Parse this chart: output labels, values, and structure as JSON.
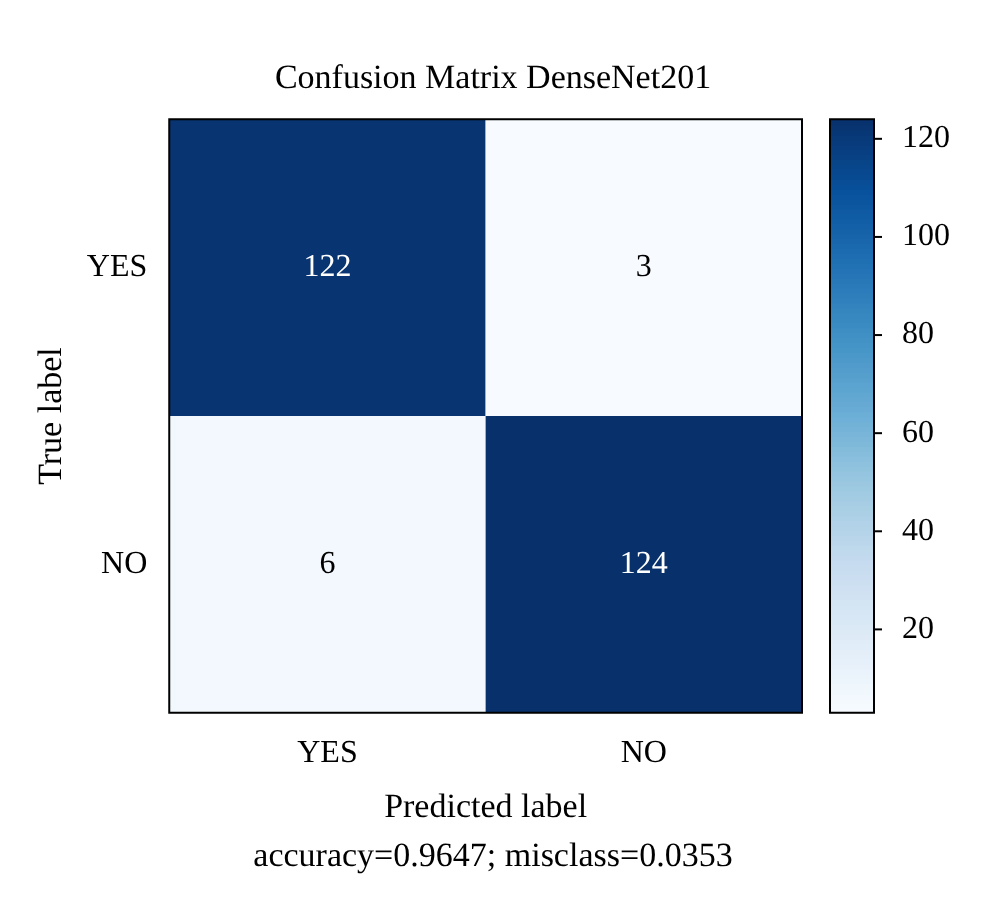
{
  "chart_data": {
    "type": "heatmap",
    "title": "Confusion Matrix DenseNet201",
    "xlabel": "Predicted label",
    "ylabel": "True label",
    "categories": [
      "YES",
      "NO"
    ],
    "y_categories": [
      "YES",
      "NO"
    ],
    "cells": [
      [
        122,
        3
      ],
      [
        6,
        124
      ]
    ],
    "clim": [
      3,
      124
    ],
    "cticks": [
      20,
      40,
      60,
      80,
      100,
      120
    ],
    "data_labels": true,
    "annotations": [
      "accuracy=0.9647; misclass=0.0353"
    ]
  }
}
